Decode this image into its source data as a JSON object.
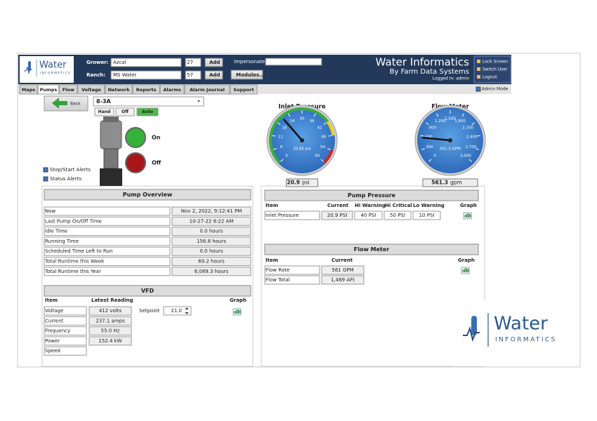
{
  "header": {
    "logo_word": "Water",
    "logo_sub": "INFORMATICS",
    "grower_label": "Grower:",
    "grower": "Azcal",
    "grower_id": "27",
    "ranch_label": "Ranch:",
    "ranch": "MS Water",
    "ranch_id": "57",
    "add": "Add",
    "impersonate_label": "Impersonate:",
    "modules": "Modules...",
    "brand_title": "Water Informatics",
    "brand_subtitle": "By Farm Data Systems",
    "logged_in": "Logged In: admin"
  },
  "side_buttons": [
    "Lock Screen",
    "Switch User",
    "Logout"
  ],
  "admin_mode": "Admin Mode",
  "tabs": [
    "Maps",
    "Pumps",
    "Flow",
    "Voltage",
    "Network",
    "Reports",
    "Alarms",
    "Alarm Journal",
    "Support"
  ],
  "pump": {
    "back": "Back",
    "selected": "8-3A",
    "modes": [
      "Hand",
      "Off",
      "Auto"
    ],
    "on": "On",
    "off": "Off",
    "checks": [
      "Stop/Start Alerts",
      "Status Alerts"
    ]
  },
  "gauges": [
    {
      "title": "Inlet Pressure",
      "ticks": [
        0,
        6,
        12,
        18,
        24,
        30,
        36,
        42,
        48,
        54,
        60
      ],
      "center_label": "20.85 psi",
      "value": 20.9,
      "unit": "psi"
    },
    {
      "title": "Flow Meter",
      "ticks": [
        0,
        300,
        600,
        900,
        {
          "value": 1200,
          "label": "1,200"
        },
        {
          "value": 1500,
          "label": "1,500"
        },
        {
          "value": 1800,
          "label": "1,800"
        },
        {
          "value": 2100,
          "label": "2,100"
        },
        {
          "value": 2400,
          "label": "2,400"
        },
        {
          "value": 2700,
          "label": "2,700"
        },
        {
          "value": 3000,
          "label": "3,000"
        }
      ],
      "center_label": "561.3 GPM",
      "value": 561.3,
      "unit": "gpm"
    }
  ],
  "pump_overview": {
    "title": "Pump Overview",
    "rows": [
      [
        "Now",
        "Nov 2, 2022, 9:12:41 PM"
      ],
      [
        "Last Pump On/Off Time",
        "10-27-22 8:22 AM"
      ],
      [
        "Idle Time",
        "0.0 hours"
      ],
      [
        "Running Time",
        "156.8 hours"
      ],
      [
        "Scheduled Time Left to Run",
        "0.0 hours"
      ],
      [
        "Total Runtime this Week",
        "69.2 hours"
      ],
      [
        "Total Runtime this Year",
        "6,089.3 hours"
      ]
    ]
  },
  "vfd": {
    "title": "VFD",
    "columns": [
      "Item",
      "Latest Reading",
      "Graph"
    ],
    "rows": [
      [
        "Voltage",
        "412 volts"
      ],
      [
        "Current",
        "237.1 amps"
      ],
      [
        "Frequency",
        "55.0 Hz"
      ],
      [
        "Power",
        "152.4 kW"
      ],
      [
        "Speed"
      ]
    ],
    "setpoint_label": "Setpoint",
    "setpoint": "21.0"
  },
  "pump_pressure": {
    "title": "Pump Pressure",
    "columns": [
      "Item",
      "Current",
      "Hi Warning",
      "Hi Critical",
      "Lo Warning",
      "Graph"
    ],
    "rows": [
      [
        "Inlet Pressure",
        "20.9 PSI",
        "40 PSI",
        "50 PSI",
        "10 PSI"
      ]
    ]
  },
  "flow_meter": {
    "title": "Flow Meter",
    "columns": [
      "Item",
      "Current",
      "Graph"
    ],
    "rows": [
      [
        "Flow Rate",
        "561 GPM"
      ],
      [
        "Flow Total",
        "1,469 AFt"
      ]
    ]
  },
  "corner_logo": {
    "word": "Water",
    "sub": "INFORMATICS"
  }
}
